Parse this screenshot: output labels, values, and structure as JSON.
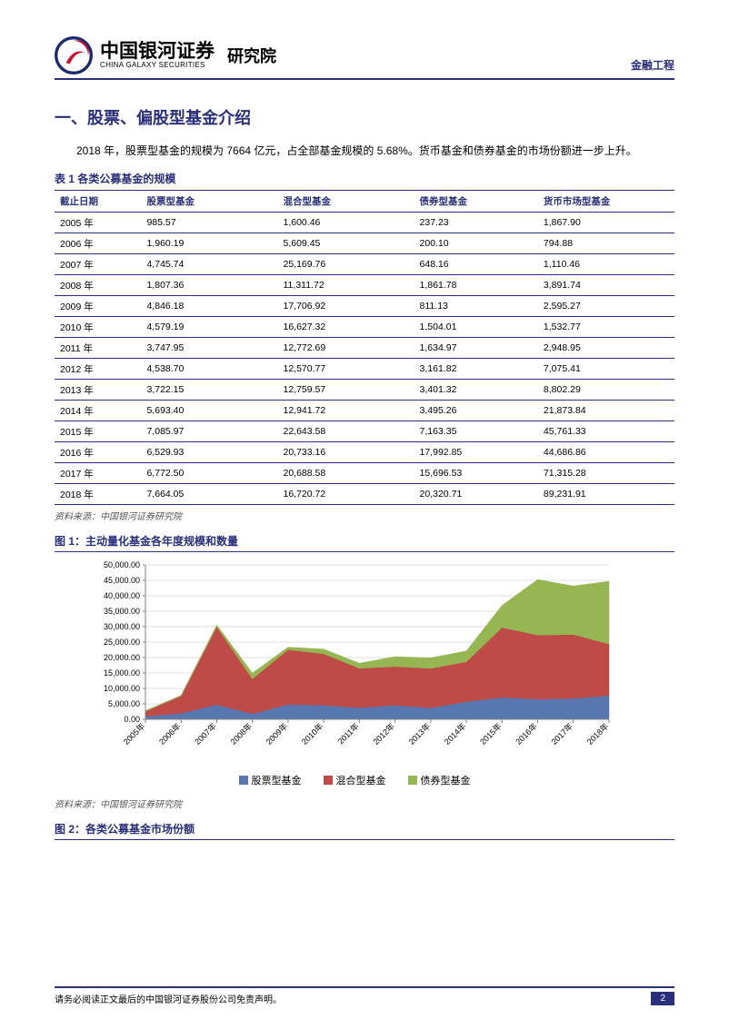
{
  "header": {
    "company_cn": "中国银河证券",
    "company_en": "CHINA GALAXY SECURITIES",
    "department": "研究院",
    "section": "金融工程",
    "logo_colors": {
      "outer": "#1a2a6b",
      "swirl": "#c8102e"
    }
  },
  "title": "一、股票、偏股型基金介绍",
  "paragraph": "2018 年，股票型基金的规模为 7664 亿元，占全部基金规模的 5.68%。货币基金和债券基金的市场份额进一步上升。",
  "table": {
    "caption": "表 1 各类公募基金的规模",
    "columns": [
      "截止日期",
      "股票型基金",
      "混合型基金",
      "债券型基金",
      "货币市场型基金"
    ],
    "rows": [
      [
        "2005 年",
        "985.57",
        "1,600.46",
        "237.23",
        "1,867.90"
      ],
      [
        "2006 年",
        "1,960.19",
        "5,609.45",
        "200.10",
        "794.88"
      ],
      [
        "2007 年",
        "4,745.74",
        "25,169.76",
        "648.16",
        "1,110.46"
      ],
      [
        "2008 年",
        "1,807.36",
        "11,311.72",
        "1,861.78",
        "3,891.74"
      ],
      [
        "2009 年",
        "4,846.18",
        "17,706.92",
        "811.13",
        "2,595.27"
      ],
      [
        "2010 年",
        "4,579.19",
        "16,627.32",
        "1,504.01",
        "1,532.77"
      ],
      [
        "2011 年",
        "3,747.95",
        "12,772.69",
        "1,634.97",
        "2,948.95"
      ],
      [
        "2012 年",
        "4,538.70",
        "12,570.77",
        "3,161.82",
        "7,075.41"
      ],
      [
        "2013 年",
        "3,722.15",
        "12,759.57",
        "3,401.32",
        "8,802.29"
      ],
      [
        "2014 年",
        "5,693.40",
        "12,941.72",
        "3,495.26",
        "21,873.84"
      ],
      [
        "2015 年",
        "7,085.97",
        "22,643.58",
        "7,163.35",
        "45,761.33"
      ],
      [
        "2016 年",
        "6,529.93",
        "20,733.16",
        "17,992.85",
        "44,686.86"
      ],
      [
        "2017 年",
        "6,772.50",
        "20,688.58",
        "15,696.53",
        "71,315.28"
      ],
      [
        "2018 年",
        "7,664.05",
        "16,720.72",
        "20,320.71",
        "89,231.91"
      ]
    ],
    "source": "资料来源：中国银河证券研究院",
    "col_widths_pct": [
      14,
      22,
      22,
      20,
      22
    ]
  },
  "chart1": {
    "type": "area-stacked",
    "caption": "图 1：主动量化基金各年度规模和数量",
    "categories": [
      "2005年",
      "2006年",
      "2007年",
      "2008年",
      "2009年",
      "2010年",
      "2011年",
      "2012年",
      "2013年",
      "2014年",
      "2015年",
      "2016年",
      "2017年",
      "2018年"
    ],
    "series": [
      {
        "name": "股票型基金",
        "color": "#5877b0",
        "values": [
          985.57,
          1960.19,
          4745.74,
          1807.36,
          4846.18,
          4579.19,
          3747.95,
          4538.7,
          3722.15,
          5693.4,
          7085.97,
          6529.93,
          6772.5,
          7664.05
        ]
      },
      {
        "name": "混合型基金",
        "color": "#be4b48",
        "values": [
          1600.46,
          5609.45,
          25169.76,
          11311.72,
          17706.92,
          16627.32,
          12772.69,
          12570.77,
          12759.57,
          12941.72,
          22643.58,
          20733.16,
          20688.58,
          16720.72
        ]
      },
      {
        "name": "债券型基金",
        "color": "#95b652",
        "values": [
          237.23,
          200.1,
          648.16,
          1861.78,
          811.13,
          1504.01,
          1634.97,
          3161.82,
          3401.32,
          3495.26,
          7163.35,
          17992.85,
          15696.53,
          20320.71
        ]
      }
    ],
    "ylim": [
      0,
      50000
    ],
    "ytick_step": 5000,
    "y_label_suffix": ".00",
    "grid_color": "#bfbfbf",
    "axis_color": "#808080",
    "plot_bg": "#ffffff",
    "font_size_axis": 9,
    "source": "资料来源：中国银河证券研究院"
  },
  "fig2_caption": "图 2：各类公募基金市场份额",
  "footer": {
    "disclaimer": "请务必阅读正文最后的中国银河证券股份公司免责声明。",
    "page": "2"
  }
}
